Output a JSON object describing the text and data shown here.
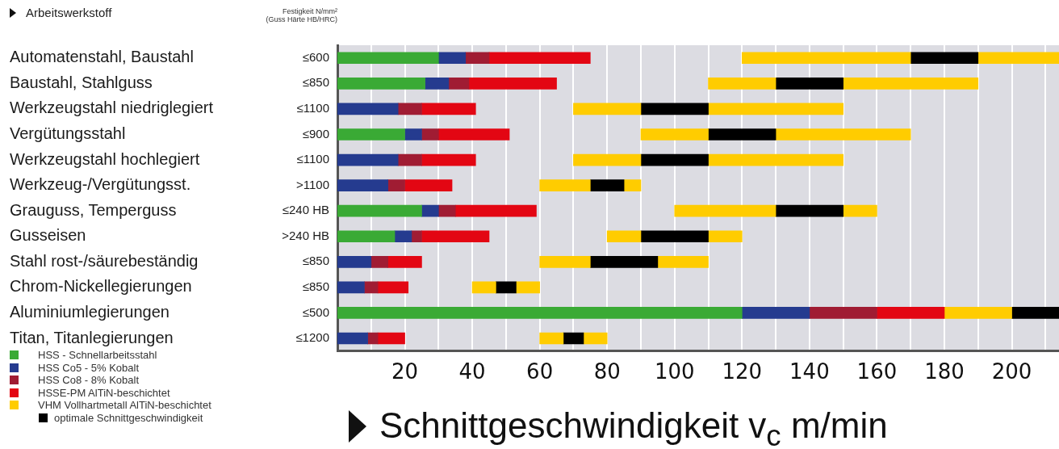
{
  "chart_data": {
    "type": "bar",
    "orientation": "horizontal",
    "ylabel": "Arbeitswerkstoff",
    "y2label": "Festigkeit N/mm²\n(Guss Härte HB/HRC)",
    "xlabel": "Schnittgeschwindigkeit v$_{c}$ m/min",
    "categories": [
      "Automatenstahl, Baustahl",
      "Baustahl, Stahlguss",
      "Werkzeugstahl niedriglegiert",
      "Vergütungsstahl",
      "Werkzeugstahl hochlegiert",
      "Werkzeug-/Vergütungsst.",
      "Grauguss, Temperguss",
      "Gusseisen",
      "Stahl rost-/säurebeständig",
      "Chrom-Nickellegierungen",
      "Aluminiumlegierungen",
      "Titan, Titanlegierungen"
    ],
    "y2_categories": [
      "≤600",
      "≤850",
      "≤1100",
      "≤900",
      "≤1100",
      ">1100",
      "≤240 HB",
      ">240 HB",
      "≤850",
      "≤850",
      "≤500",
      "≤1200"
    ],
    "series": [
      {
        "name": "HSS - Schnellarbeitsstahl",
        "color": "#3aaa35",
        "base": [
          0,
          0,
          null,
          0,
          null,
          null,
          0,
          0,
          null,
          null,
          0,
          null
        ],
        "values": [
          30,
          26,
          null,
          20,
          null,
          null,
          25,
          17,
          null,
          null,
          120,
          null
        ]
      },
      {
        "name": "HSS Co5 - 5% Kobalt",
        "color": "#253b8f",
        "base": [
          30,
          26,
          0,
          20,
          0,
          0,
          25,
          17,
          0,
          0,
          120,
          0
        ],
        "values": [
          8,
          7,
          18,
          5,
          18,
          15,
          5,
          5,
          10,
          8,
          20,
          9
        ]
      },
      {
        "name": "HSS Co8 - 8% Kobalt",
        "color": "#a01c33",
        "base": [
          38,
          33,
          18,
          25,
          18,
          15,
          30,
          22,
          10,
          8,
          140,
          9
        ],
        "values": [
          7,
          6,
          7,
          5,
          7,
          5,
          5,
          3,
          5,
          4,
          20,
          3
        ]
      },
      {
        "name": "HSSE-PM AlTiN-beschichtet",
        "color": "#e30613",
        "base": [
          45,
          39,
          25,
          30,
          25,
          20,
          35,
          25,
          15,
          12,
          160,
          12
        ],
        "values": [
          30,
          26,
          16,
          21,
          16,
          14,
          24,
          20,
          10,
          9,
          20,
          8
        ]
      },
      {
        "name": "VHM Vollhartmetall AlTiN-beschichtet",
        "color": "#ffcc00",
        "base": [
          120,
          110,
          70,
          90,
          70,
          60,
          100,
          80,
          60,
          40,
          180,
          60
        ],
        "values": [
          50,
          20,
          20,
          20,
          20,
          15,
          30,
          10,
          15,
          7,
          20,
          7
        ]
      },
      {
        "name": "optimale Schnittgeschwindigkeit",
        "color": "#000000",
        "base": [
          170,
          130,
          90,
          110,
          90,
          75,
          130,
          90,
          75,
          47,
          200,
          67
        ],
        "values": [
          20,
          20,
          20,
          20,
          20,
          10,
          20,
          20,
          20,
          6,
          14,
          6
        ]
      },
      {
        "color": "#ffcc00",
        "base": [
          190,
          150,
          110,
          130,
          110,
          85,
          150,
          110,
          95,
          53,
          null,
          73
        ],
        "values": [
          24,
          40,
          40,
          40,
          40,
          5,
          10,
          10,
          15,
          7,
          null,
          7
        ]
      }
    ],
    "xlim": [
      0,
      214
    ],
    "xticks": [
      {
        "value": 10,
        "label": null
      },
      20,
      {
        "value": 30,
        "label": null
      },
      40,
      {
        "value": 50,
        "label": null
      },
      60,
      {
        "value": 70,
        "label": null
      },
      80,
      {
        "value": 90,
        "label": null
      },
      100,
      {
        "value": 110,
        "label": null
      },
      120,
      {
        "value": 130,
        "label": null
      },
      140,
      {
        "value": 150,
        "label": null
      },
      160,
      {
        "value": 170,
        "label": null
      },
      180,
      {
        "value": 190,
        "label": null
      },
      200,
      {
        "value": 210,
        "label": null
      }
    ],
    "grid": "x",
    "legend": "bottom left"
  }
}
